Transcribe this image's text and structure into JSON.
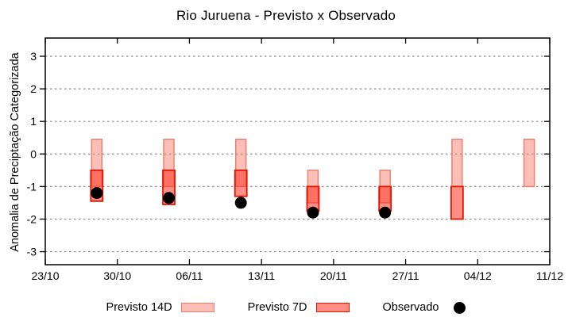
{
  "title": "Rio Juruena - Previsto x Observado",
  "chart_data": {
    "type": "candlestick-range",
    "title": "Rio Juruena - Previsto x Observado",
    "ylabel": "Anomalia de Preciptação Categorizada",
    "ylim": [
      -3.4,
      3.56
    ],
    "yticks": [
      -3,
      -2,
      -1,
      0,
      1,
      2,
      3
    ],
    "grid": "horizontal-dotted",
    "xlim_days": [
      0,
      49
    ],
    "xticks": [
      {
        "day": 0,
        "label": "23/10"
      },
      {
        "day": 7,
        "label": "30/10"
      },
      {
        "day": 14,
        "label": "06/11"
      },
      {
        "day": 21,
        "label": "13/11"
      },
      {
        "day": 28,
        "label": "20/11"
      },
      {
        "day": 35,
        "label": "27/11"
      },
      {
        "day": 42,
        "label": "04/12"
      },
      {
        "day": 49,
        "label": "11/12"
      }
    ],
    "series_labels": {
      "p14": "Previsto 14D",
      "p7": "Previsto 7D",
      "obs": "Observado"
    },
    "groups": [
      {
        "day": 5,
        "p14_hi": 0.45,
        "p14_lo": -1.0,
        "p7_hi": -0.5,
        "p7_lo": -1.45,
        "obs": -1.2
      },
      {
        "day": 12,
        "p14_hi": 0.45,
        "p14_lo": -1.0,
        "p7_hi": -0.5,
        "p7_lo": -1.55,
        "obs": -1.35
      },
      {
        "day": 19,
        "p14_hi": 0.45,
        "p14_lo": -1.0,
        "p7_hi": -0.5,
        "p7_lo": -1.3,
        "obs": -1.5
      },
      {
        "day": 26,
        "p14_hi": -0.5,
        "p14_lo": -1.5,
        "p7_hi": -1.0,
        "p7_lo": -1.75,
        "obs": -1.8
      },
      {
        "day": 33,
        "p14_hi": -0.5,
        "p14_lo": -1.5,
        "p7_hi": -1.0,
        "p7_lo": -1.75,
        "obs": -1.8
      },
      {
        "day": 40,
        "p14_hi": 0.45,
        "p14_lo": -1.0,
        "p7_hi": -1.0,
        "p7_lo": -2.0,
        "obs": null
      },
      {
        "day": 47,
        "p14_hi": 0.45,
        "p14_lo": -1.0,
        "p7_hi": null,
        "p7_lo": null,
        "obs": null
      }
    ],
    "colors": {
      "p14_fill": "#fa8072",
      "p14_fill_opacity": 0.5,
      "p14_stroke": "#f0806e",
      "p7_fill": "#ff3322",
      "p7_fill_opacity": 0.55,
      "p7_stroke": "#e51400",
      "obs": "#000000",
      "grid": "#8a8a8a",
      "axis": "#000000"
    },
    "legend_position": "bottom-center"
  },
  "legend": {
    "items": [
      {
        "label": "Previsto 14D",
        "swatch": "p14"
      },
      {
        "label": "Previsto 7D",
        "swatch": "p7"
      },
      {
        "label": "Observado",
        "swatch": "obs"
      }
    ]
  }
}
